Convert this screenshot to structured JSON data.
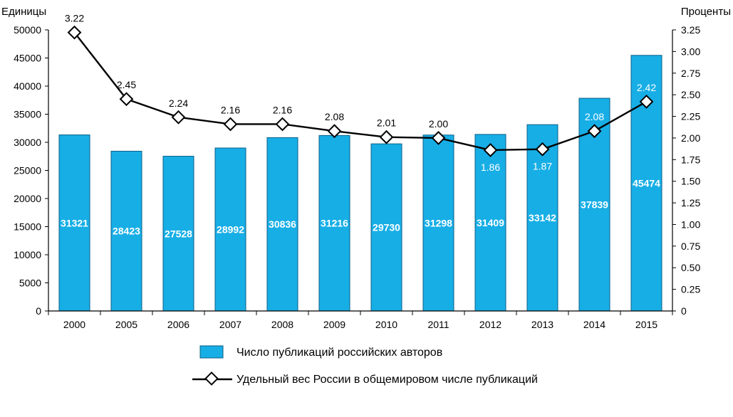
{
  "chart_data": {
    "type": "bar",
    "categories": [
      "2000",
      "2005",
      "2006",
      "2007",
      "2008",
      "2009",
      "2010",
      "2011",
      "2012",
      "2013",
      "2014",
      "2015"
    ],
    "series": [
      {
        "name": "Число публикаций российских авторов",
        "type": "bar",
        "axis": "left",
        "values": [
          31321,
          28423,
          27528,
          28992,
          30836,
          31216,
          29730,
          31298,
          31409,
          33142,
          37839,
          45474
        ],
        "data_labels": [
          "31321",
          "28423",
          "27528",
          "28992",
          "30836",
          "31216",
          "29730",
          "31298",
          "31409",
          "33142",
          "37839",
          "45474"
        ],
        "color": "#17aee6"
      },
      {
        "name": "Удельный вес России в общемировом числе публикаций",
        "type": "line",
        "axis": "right",
        "values": [
          3.22,
          2.45,
          2.24,
          2.16,
          2.16,
          2.08,
          2.01,
          2.0,
          1.86,
          1.87,
          2.08,
          2.42
        ],
        "data_labels": [
          "3.22",
          "2.45",
          "2.24",
          "2.16",
          "2.16",
          "2.08",
          "2.01",
          "2.00",
          "1.86",
          "1.87",
          "2.08",
          "2.42"
        ],
        "color": "#000000"
      }
    ],
    "left_axis": {
      "label": "Единицы",
      "range": [
        0,
        50000
      ],
      "ticks": [
        "0",
        "5000",
        "10000",
        "15000",
        "20000",
        "25000",
        "30000",
        "35000",
        "40000",
        "45000",
        "50000"
      ]
    },
    "right_axis": {
      "label": "Проценты",
      "range": [
        0,
        3.25
      ],
      "ticks": [
        "0",
        "0.25",
        "0.50",
        "0.75",
        "1.00",
        "1.25",
        "1.50",
        "1.75",
        "2.00",
        "2.25",
        "2.50",
        "2.75",
        "3.00",
        "3.25"
      ]
    },
    "grid": false,
    "legend": {
      "position": "bottom-center",
      "entries": [
        "Число публикаций российских авторов",
        "Удельный вес России в общемировом числе публикаций"
      ]
    }
  }
}
